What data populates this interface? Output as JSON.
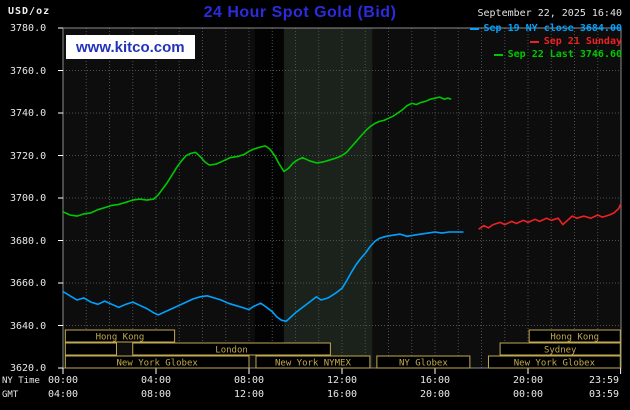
{
  "header": {
    "unit": "USD/oz",
    "title": "24 Hour Spot Gold (Bid)",
    "datetime": "September 22, 2025 16:40",
    "watermark": "www.kitco.com"
  },
  "legend": [
    {
      "label": "Sep 19 NY close 3684.00",
      "color": "#00a2ff"
    },
    {
      "label": "Sep 21 Sunday",
      "color": "#ee2222"
    },
    {
      "label": "Sep 22 Last 3746.60",
      "color": "#00c800"
    }
  ],
  "axis": {
    "ny_label": "NY Time",
    "gmt_label": "GMT"
  },
  "chart_data": {
    "type": "line",
    "title": "24 Hour Spot Gold (Bid)",
    "ylabel": "USD/oz",
    "xlim": [
      0,
      24
    ],
    "ylim": [
      3620,
      3780
    ],
    "y_gridlines": [
      3620,
      3640,
      3660,
      3680,
      3700,
      3720,
      3740,
      3760,
      3780
    ],
    "x_gridline_step_hours": 1,
    "x_ticks": [
      {
        "h": 0,
        "ny": "00:00",
        "gmt": "04:00"
      },
      {
        "h": 4,
        "ny": "04:00",
        "gmt": "08:00"
      },
      {
        "h": 8,
        "ny": "08:00",
        "gmt": "12:00"
      },
      {
        "h": 12,
        "ny": "12:00",
        "gmt": "16:00"
      },
      {
        "h": 16,
        "ny": "16:00",
        "gmt": "20:00"
      },
      {
        "h": 20,
        "ny": "20:00",
        "gmt": "00:00"
      },
      {
        "h": 23.983,
        "ny": "23:59",
        "gmt": "03:59"
      }
    ],
    "colors": {
      "plot_bg": "#0d0d0d",
      "grid": "#4f4f4f",
      "border": "#8c8c8c",
      "tick": "#ffffff",
      "session": "#c0a94f"
    },
    "bands": [
      {
        "start": 8.25,
        "end": 9.5,
        "color": "#030303"
      },
      {
        "start": 9.5,
        "end": 13.3,
        "color": "#1b221b"
      }
    ],
    "sessions": [
      {
        "row": 0,
        "start": 0.1,
        "end": 4.8,
        "label": "Hong Kong"
      },
      {
        "row": 0,
        "start": 20.05,
        "end": 23.97,
        "label": "Hong Kong"
      },
      {
        "row": 1,
        "start": 0.1,
        "end": 2.3,
        "label": ""
      },
      {
        "row": 1,
        "start": 3.0,
        "end": 11.5,
        "label": "London"
      },
      {
        "row": 1,
        "start": 18.8,
        "end": 23.97,
        "label": "Sydney"
      },
      {
        "row": 2,
        "start": 0.1,
        "end": 8.0,
        "label": "New York Globex"
      },
      {
        "row": 2,
        "start": 8.3,
        "end": 13.2,
        "label": "New York NYMEX"
      },
      {
        "row": 2,
        "start": 13.5,
        "end": 17.5,
        "label": "NY Globex"
      },
      {
        "row": 2,
        "start": 18.3,
        "end": 23.97,
        "label": "New York Globex"
      }
    ],
    "series": [
      {
        "id": "sep19",
        "name": "Sep 19 NY close",
        "close": 3684.0,
        "color": "#00a2ff",
        "points": [
          [
            0.0,
            3656.0
          ],
          [
            0.3,
            3654.0
          ],
          [
            0.6,
            3652.0
          ],
          [
            0.9,
            3653.0
          ],
          [
            1.2,
            3651.0
          ],
          [
            1.5,
            3650.0
          ],
          [
            1.8,
            3651.5
          ],
          [
            2.1,
            3650.0
          ],
          [
            2.4,
            3648.5
          ],
          [
            2.7,
            3650.0
          ],
          [
            3.0,
            3651.0
          ],
          [
            3.3,
            3649.5
          ],
          [
            3.6,
            3648.0
          ],
          [
            3.9,
            3646.0
          ],
          [
            4.1,
            3645.0
          ],
          [
            4.4,
            3646.5
          ],
          [
            4.7,
            3648.0
          ],
          [
            5.0,
            3649.5
          ],
          [
            5.3,
            3651.0
          ],
          [
            5.6,
            3652.5
          ],
          [
            5.9,
            3653.5
          ],
          [
            6.2,
            3654.0
          ],
          [
            6.5,
            3653.0
          ],
          [
            6.8,
            3652.0
          ],
          [
            7.1,
            3650.5
          ],
          [
            7.4,
            3649.5
          ],
          [
            7.7,
            3648.5
          ],
          [
            8.0,
            3647.5
          ],
          [
            8.2,
            3649.0
          ],
          [
            8.5,
            3650.5
          ],
          [
            8.7,
            3649.0
          ],
          [
            9.0,
            3646.5
          ],
          [
            9.2,
            3644.0
          ],
          [
            9.4,
            3642.5
          ],
          [
            9.6,
            3642.0
          ],
          [
            9.8,
            3644.0
          ],
          [
            10.0,
            3646.0
          ],
          [
            10.3,
            3648.5
          ],
          [
            10.6,
            3651.0
          ],
          [
            10.9,
            3653.5
          ],
          [
            11.1,
            3652.0
          ],
          [
            11.4,
            3653.0
          ],
          [
            11.7,
            3655.0
          ],
          [
            12.0,
            3657.5
          ],
          [
            12.2,
            3661.0
          ],
          [
            12.4,
            3665.0
          ],
          [
            12.6,
            3668.5
          ],
          [
            12.8,
            3671.5
          ],
          [
            13.0,
            3674.0
          ],
          [
            13.2,
            3677.0
          ],
          [
            13.4,
            3679.5
          ],
          [
            13.6,
            3681.0
          ],
          [
            13.9,
            3682.0
          ],
          [
            14.2,
            3682.5
          ],
          [
            14.5,
            3683.0
          ],
          [
            14.8,
            3682.0
          ],
          [
            15.1,
            3682.5
          ],
          [
            15.4,
            3683.0
          ],
          [
            15.7,
            3683.5
          ],
          [
            16.0,
            3684.0
          ],
          [
            16.3,
            3683.5
          ],
          [
            16.6,
            3684.0
          ],
          [
            16.9,
            3684.0
          ],
          [
            17.2,
            3684.0
          ]
        ]
      },
      {
        "id": "sep21",
        "name": "Sep 21 Sunday",
        "color": "#ee2222",
        "points": [
          [
            17.9,
            3685.5
          ],
          [
            18.1,
            3687.0
          ],
          [
            18.3,
            3686.0
          ],
          [
            18.5,
            3687.5
          ],
          [
            18.8,
            3688.5
          ],
          [
            19.0,
            3687.5
          ],
          [
            19.3,
            3689.0
          ],
          [
            19.5,
            3688.0
          ],
          [
            19.8,
            3689.5
          ],
          [
            20.0,
            3688.5
          ],
          [
            20.3,
            3690.0
          ],
          [
            20.5,
            3689.0
          ],
          [
            20.8,
            3690.5
          ],
          [
            21.0,
            3689.5
          ],
          [
            21.3,
            3690.5
          ],
          [
            21.5,
            3687.5
          ],
          [
            21.7,
            3689.5
          ],
          [
            21.9,
            3691.5
          ],
          [
            22.1,
            3690.5
          ],
          [
            22.4,
            3691.5
          ],
          [
            22.7,
            3690.5
          ],
          [
            23.0,
            3692.0
          ],
          [
            23.2,
            3691.0
          ],
          [
            23.5,
            3692.0
          ],
          [
            23.7,
            3693.0
          ],
          [
            23.9,
            3695.0
          ],
          [
            23.98,
            3697.0
          ]
        ]
      },
      {
        "id": "sep22",
        "name": "Sep 22 Last",
        "last": 3746.6,
        "color": "#00c800",
        "points": [
          [
            0.0,
            3693.5
          ],
          [
            0.3,
            3692.0
          ],
          [
            0.6,
            3691.5
          ],
          [
            0.9,
            3692.5
          ],
          [
            1.2,
            3693.0
          ],
          [
            1.5,
            3694.5
          ],
          [
            1.8,
            3695.5
          ],
          [
            2.1,
            3696.5
          ],
          [
            2.4,
            3697.0
          ],
          [
            2.7,
            3698.0
          ],
          [
            3.0,
            3699.0
          ],
          [
            3.3,
            3699.5
          ],
          [
            3.6,
            3699.0
          ],
          [
            3.9,
            3699.5
          ],
          [
            4.1,
            3701.5
          ],
          [
            4.3,
            3704.5
          ],
          [
            4.5,
            3707.5
          ],
          [
            4.7,
            3711.0
          ],
          [
            4.9,
            3714.5
          ],
          [
            5.1,
            3717.5
          ],
          [
            5.3,
            3720.0
          ],
          [
            5.5,
            3721.0
          ],
          [
            5.7,
            3721.5
          ],
          [
            5.9,
            3719.5
          ],
          [
            6.1,
            3717.0
          ],
          [
            6.3,
            3715.5
          ],
          [
            6.6,
            3716.0
          ],
          [
            6.9,
            3717.5
          ],
          [
            7.2,
            3719.0
          ],
          [
            7.5,
            3719.5
          ],
          [
            7.8,
            3720.5
          ],
          [
            8.0,
            3722.0
          ],
          [
            8.2,
            3723.0
          ],
          [
            8.5,
            3724.0
          ],
          [
            8.7,
            3724.5
          ],
          [
            8.9,
            3723.0
          ],
          [
            9.1,
            3720.0
          ],
          [
            9.3,
            3716.0
          ],
          [
            9.5,
            3712.5
          ],
          [
            9.7,
            3714.0
          ],
          [
            9.9,
            3716.5
          ],
          [
            10.1,
            3718.0
          ],
          [
            10.3,
            3719.0
          ],
          [
            10.6,
            3717.5
          ],
          [
            10.9,
            3716.5
          ],
          [
            11.2,
            3717.0
          ],
          [
            11.5,
            3718.0
          ],
          [
            11.8,
            3719.0
          ],
          [
            12.0,
            3720.0
          ],
          [
            12.2,
            3721.5
          ],
          [
            12.4,
            3724.0
          ],
          [
            12.6,
            3726.5
          ],
          [
            12.8,
            3729.0
          ],
          [
            13.0,
            3731.5
          ],
          [
            13.2,
            3733.5
          ],
          [
            13.4,
            3735.0
          ],
          [
            13.6,
            3736.0
          ],
          [
            13.8,
            3736.5
          ],
          [
            14.0,
            3737.5
          ],
          [
            14.2,
            3738.5
          ],
          [
            14.4,
            3740.0
          ],
          [
            14.6,
            3741.5
          ],
          [
            14.8,
            3743.5
          ],
          [
            15.0,
            3744.5
          ],
          [
            15.2,
            3744.0
          ],
          [
            15.4,
            3745.0
          ],
          [
            15.6,
            3745.5
          ],
          [
            15.8,
            3746.5
          ],
          [
            16.0,
            3747.0
          ],
          [
            16.2,
            3747.5
          ],
          [
            16.4,
            3746.5
          ],
          [
            16.55,
            3747.0
          ],
          [
            16.67,
            3746.6
          ]
        ]
      }
    ]
  }
}
